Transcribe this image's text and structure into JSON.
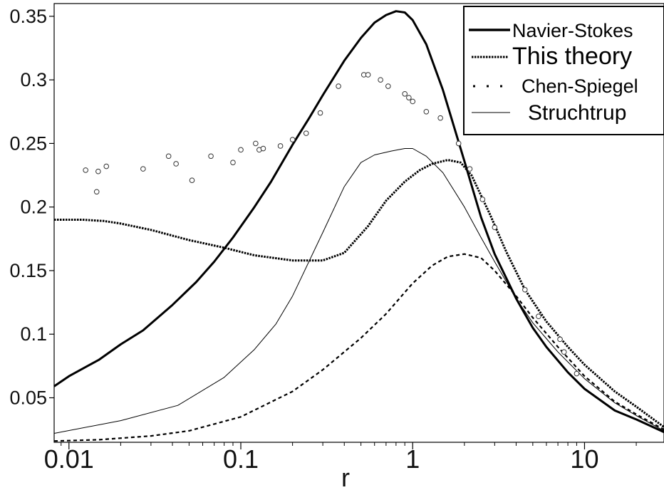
{
  "chart_data": {
    "type": "line",
    "title": "",
    "xlabel": "r",
    "ylabel": "",
    "xscale": "log",
    "xlim": [
      0.0082,
      29
    ],
    "ylim": [
      0.015,
      0.36
    ],
    "x_ticks": [
      0.01,
      0.1,
      1,
      10
    ],
    "x_tick_labels": [
      "0.01",
      "0.1",
      "1",
      "10"
    ],
    "y_ticks": [
      0.05,
      0.1,
      0.15,
      0.2,
      0.25,
      0.3,
      0.35
    ],
    "y_tick_labels": [
      "0.05",
      "0.1",
      "0.15",
      "0.2",
      "0.25",
      "0.3",
      "0.35"
    ],
    "grid": false,
    "legend_position": "top-right",
    "series": [
      {
        "name": "Navier-Stokes",
        "style": "thick-solid",
        "x": [
          0.0082,
          0.01,
          0.015,
          0.02,
          0.027,
          0.04,
          0.055,
          0.07,
          0.09,
          0.12,
          0.15,
          0.2,
          0.25,
          0.3,
          0.4,
          0.5,
          0.6,
          0.7,
          0.8,
          0.9,
          1.0,
          1.2,
          1.5,
          2.0,
          2.5,
          3.0,
          4.0,
          5.0,
          6.0,
          8.0,
          10,
          15,
          20,
          29
        ],
        "y": [
          0.059,
          0.067,
          0.08,
          0.092,
          0.103,
          0.123,
          0.141,
          0.157,
          0.176,
          0.2,
          0.22,
          0.249,
          0.27,
          0.288,
          0.315,
          0.333,
          0.345,
          0.351,
          0.354,
          0.353,
          0.347,
          0.328,
          0.292,
          0.236,
          0.192,
          0.163,
          0.128,
          0.105,
          0.09,
          0.07,
          0.057,
          0.04,
          0.033,
          0.023
        ]
      },
      {
        "name": "This theory",
        "style": "dense-dotted",
        "x": [
          0.0082,
          0.012,
          0.016,
          0.02,
          0.03,
          0.05,
          0.08,
          0.12,
          0.2,
          0.3,
          0.4,
          0.55,
          0.7,
          0.9,
          1.1,
          1.3,
          1.6,
          1.9,
          2.2,
          2.8,
          3.5,
          4.5,
          6.0,
          8.0,
          10,
          15,
          20,
          29
        ],
        "y": [
          0.19,
          0.19,
          0.189,
          0.187,
          0.182,
          0.174,
          0.168,
          0.162,
          0.158,
          0.158,
          0.164,
          0.185,
          0.205,
          0.22,
          0.229,
          0.234,
          0.237,
          0.235,
          0.225,
          0.195,
          0.165,
          0.135,
          0.11,
          0.09,
          0.076,
          0.055,
          0.043,
          0.027
        ]
      },
      {
        "name": "Chen-Spiegel",
        "style": "dashed",
        "x": [
          0.0082,
          0.015,
          0.03,
          0.05,
          0.1,
          0.2,
          0.3,
          0.5,
          0.7,
          1.0,
          1.3,
          1.6,
          2.0,
          2.5,
          3.0,
          4.0,
          5.0,
          7.0,
          10,
          15,
          20,
          29
        ],
        "y": [
          0.016,
          0.017,
          0.02,
          0.024,
          0.035,
          0.055,
          0.072,
          0.097,
          0.116,
          0.14,
          0.154,
          0.161,
          0.163,
          0.16,
          0.15,
          0.13,
          0.113,
          0.09,
          0.067,
          0.047,
          0.037,
          0.025
        ]
      },
      {
        "name": "Struchtrup",
        "style": "thin-solid",
        "x": [
          0.0082,
          0.02,
          0.043,
          0.08,
          0.12,
          0.16,
          0.2,
          0.3,
          0.4,
          0.5,
          0.6,
          0.75,
          0.9,
          1.0,
          1.2,
          1.5,
          2.0,
          2.5,
          3.0,
          4.0,
          5.0,
          7.0,
          10,
          15,
          20,
          29
        ],
        "y": [
          0.022,
          0.032,
          0.044,
          0.066,
          0.088,
          0.108,
          0.13,
          0.18,
          0.216,
          0.235,
          0.241,
          0.244,
          0.246,
          0.246,
          0.24,
          0.227,
          0.2,
          0.176,
          0.157,
          0.128,
          0.109,
          0.086,
          0.065,
          0.046,
          0.036,
          0.024
        ]
      },
      {
        "name": "",
        "style": "open-circles",
        "x": [
          0.0125,
          0.0145,
          0.0148,
          0.0165,
          0.027,
          0.038,
          0.042,
          0.052,
          0.067,
          0.09,
          0.1,
          0.122,
          0.128,
          0.135,
          0.17,
          0.2,
          0.24,
          0.29,
          0.37,
          0.52,
          0.55,
          0.65,
          0.72,
          0.9,
          0.95,
          1.0,
          1.2,
          1.45,
          1.85,
          2.15,
          2.55,
          3.0,
          4.5,
          5.4,
          7.2,
          7.6,
          9.0
        ],
        "y": [
          0.229,
          0.212,
          0.228,
          0.232,
          0.23,
          0.24,
          0.234,
          0.221,
          0.24,
          0.235,
          0.245,
          0.25,
          0.245,
          0.246,
          0.248,
          0.253,
          0.258,
          0.274,
          0.295,
          0.304,
          0.304,
          0.3,
          0.295,
          0.289,
          0.286,
          0.283,
          0.275,
          0.27,
          0.25,
          0.23,
          0.206,
          0.184,
          0.135,
          0.114,
          0.096,
          0.086,
          0.069
        ]
      }
    ]
  }
}
